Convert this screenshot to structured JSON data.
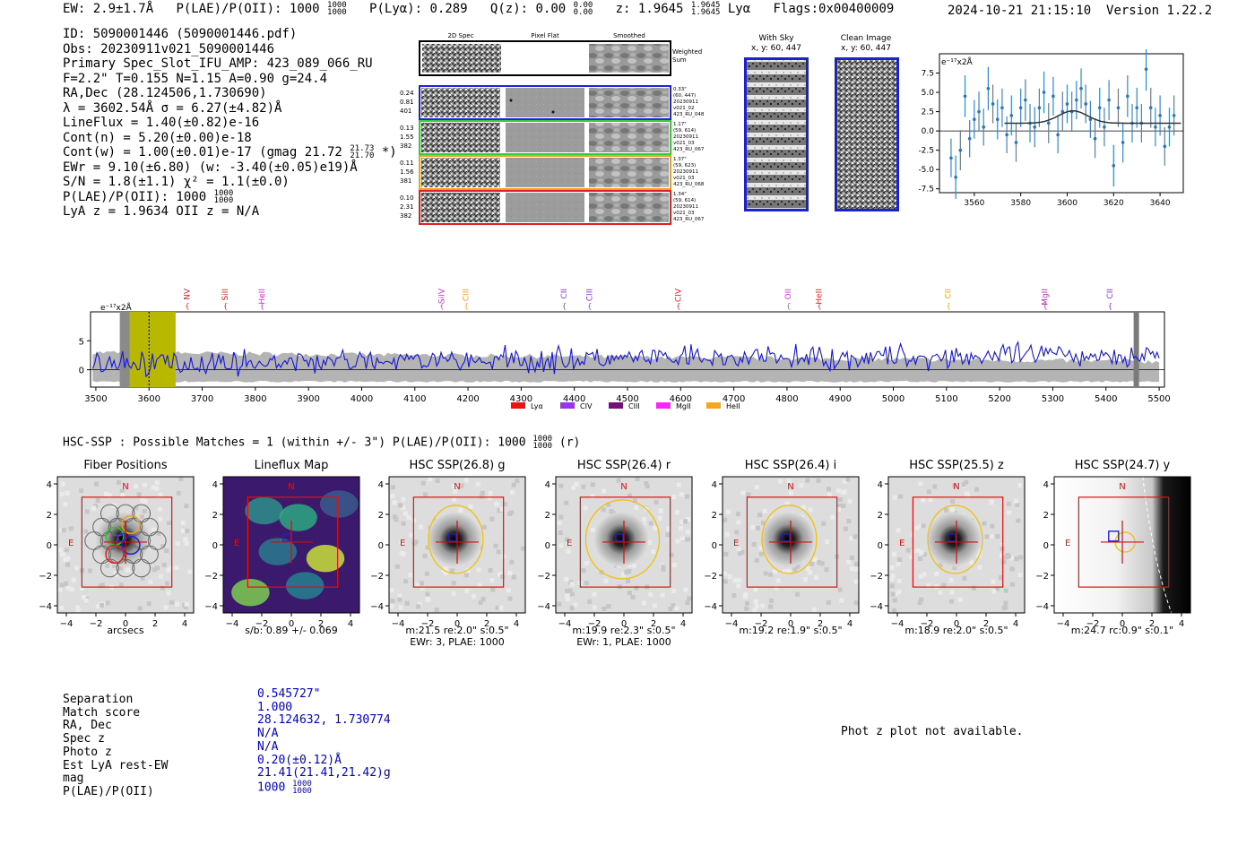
{
  "header": {
    "ew": "EW: 2.9±1.7Å",
    "plae_label": "P(LAE)/P(OII): 1000",
    "plae_hi": "1000",
    "plae_lo": "1000",
    "plya": "P(Lyα): 0.289",
    "qz": "Q(z): 0.00",
    "qz_hi": "0.00",
    "qz_lo": "0.00",
    "z": "z: 1.9645",
    "z_hi": "1.9645",
    "z_lo": "1.9645",
    "z_line": "Lyα",
    "flags": "Flags:0x00400009",
    "timestamp": "2024-10-21 21:15:10",
    "version": "Version 1.22.2"
  },
  "info": {
    "id": "ID: 5090001446 (5090001446.pdf)",
    "obs": "Obs: 20230911v021_5090001446",
    "primary": "Primary Spec_Slot_IFU_AMP: 423_089_066_RU",
    "params": "F=2.2\"  T=0.155  N=1.15  A=0.90  g=24.4",
    "radec": "RA,Dec (28.124506,1.730690)",
    "lambda": "λ = 3602.54Å  σ = 6.27(±4.82)Å",
    "lineflux": "LineFlux = 1.40(±0.82)e-16",
    "contn": "Cont(n) = 5.20(±0.00)e-18",
    "contw": "Cont(w) = 1.00(±0.01)e-17 (gmag 21.72",
    "contw_hi": "21.73",
    "contw_lo": "21.70",
    "contw_end": "*)",
    "ewr": "EWr = 9.10(±6.80) (w: -3.40(±0.05)e19)Å",
    "sn": "S/N = 1.8(±1.1)  χ² = 1.1(±0.0)",
    "plae": "P(LAE)/P(OII): 1000",
    "plae_hi": "1000",
    "plae_lo": "1000",
    "lyaz": "LyA z = 1.9634  OII z = N/A"
  },
  "cutouts": {
    "col_labels": [
      "2D Spec",
      "Pixel Flat",
      "Smoothed"
    ],
    "weighted_label": "Weighted\nSum",
    "rows": [
      {
        "left": [
          "0.24",
          "0.81",
          "401"
        ],
        "right": [
          "0.33\"",
          "(60, 447)",
          "20230911",
          "v021_02",
          "423_RU_048"
        ],
        "color": "#2020e0"
      },
      {
        "left": [
          "0.13",
          "1.55",
          "382"
        ],
        "right": [
          "1.17\"",
          "(59, 614)",
          "20230911",
          "v021_03",
          "423_RU_067"
        ],
        "color": "#30d030"
      },
      {
        "left": [
          "0.11",
          "1.56",
          "381"
        ],
        "right": [
          "1.37\"",
          "(59, 623)",
          "20230911",
          "v021_03",
          "423_RU_068"
        ],
        "color": "#f0a020"
      },
      {
        "left": [
          "0.10",
          "2.31",
          "382"
        ],
        "right": [
          "1.34\"",
          "(59, 614)",
          "20230911",
          "v021_03",
          "423_RU_067"
        ],
        "color": "#e02020"
      }
    ],
    "with_sky_title": "With Sky",
    "with_sky_xy": "x, y: 60, 447",
    "clean_title": "Clean Image",
    "clean_xy": "x, y: 60, 447"
  },
  "line_fit_chart": {
    "unit_label": "e⁻¹⁷x2Å"
  },
  "full_spectrum": {
    "unit_label": "e⁻¹⁷x2Å",
    "line_labels": [
      {
        "name": "NV",
        "x": 3671,
        "color": "#e02020"
      },
      {
        "name": "SiII",
        "x": 3743,
        "color": "#e02020"
      },
      {
        "name": "HeII",
        "x": 3812,
        "color": "#cc33cc"
      },
      {
        "name": "SiIV",
        "x": 4150,
        "color": "#cc33cc"
      },
      {
        "name": "CIII",
        "x": 4196,
        "color": "#f0a020"
      },
      {
        "name": "CII",
        "x": 4380,
        "color": "#8833cc"
      },
      {
        "name": "CIII",
        "x": 4428,
        "color": "#8833cc"
      },
      {
        "name": "CIV",
        "x": 4595,
        "color": "#e02020"
      },
      {
        "name": "OII",
        "x": 4802,
        "color": "#ee22ee"
      },
      {
        "name": "HeII",
        "x": 4860,
        "color": "#e02020"
      },
      {
        "name": "CII",
        "x": 5103,
        "color": "#f0a020"
      },
      {
        "name": "MgII",
        "x": 5285,
        "color": "#aa33aa"
      },
      {
        "name": "CII",
        "x": 5407,
        "color": "#8833cc"
      }
    ],
    "legend": [
      {
        "name": "Lyα",
        "color": "#ee1111"
      },
      {
        "name": "CIV",
        "color": "#9933ee"
      },
      {
        "name": "CIII",
        "color": "#771177"
      },
      {
        "name": "MgII",
        "color": "#ff22ff"
      },
      {
        "name": "HeII",
        "color": "#f5a520"
      }
    ]
  },
  "hsc": {
    "header": "HSC-SSP : Possible Matches = 1 (within +/- 3\")  P(LAE)/P(OII): 1000",
    "header_hi": "1000",
    "header_lo": "1000",
    "header_end": "(r)",
    "panels": [
      {
        "title": "Fiber Positions",
        "cap1": "arcsecs",
        "cap2": ""
      },
      {
        "title": "Lineflux Map",
        "cap1": "s/b: 0.89 +/- 0.069",
        "cap2": ""
      },
      {
        "title": "HSC SSP(26.8) g",
        "cap1": "m:21.5  re:2.0\"  s:0.5\"",
        "cap2": "EWr: 3, PLAE: 1000"
      },
      {
        "title": "HSC SSP(26.4) r",
        "cap1": "m:19.9  re:2.3\"  s:0.5\"",
        "cap2": "EWr: 1, PLAE: 1000"
      },
      {
        "title": "HSC SSP(26.4) i",
        "cap1": "m:19.2  re:1.9\"  s:0.5\"",
        "cap2": ""
      },
      {
        "title": "HSC SSP(25.5) z",
        "cap1": "m:18.9  re:2.0\"  s:0.5\"",
        "cap2": ""
      },
      {
        "title": "HSC SSP(24.7) y",
        "cap1": "m:24.7  rc:0.9\"  s:0.1\"",
        "cap2": ""
      }
    ],
    "north": "N",
    "east": "E",
    "ticks": [
      "4",
      "2",
      "0",
      "−2",
      "−4"
    ],
    "xticks": [
      "−4",
      "−2",
      "0",
      "2",
      "4"
    ]
  },
  "match": {
    "labels": [
      "Separation",
      "Match score",
      "RA, Dec",
      "Spec z",
      "Photo z",
      "Est LyA rest-EW",
      "mag",
      "P(LAE)/P(OII)"
    ],
    "values": [
      "0.545727\"",
      "1.000",
      "28.124632, 1.730774",
      "N/A",
      "N/A",
      "0.20(±0.12)Å",
      "21.41(21.41,21.42)g",
      "1000"
    ],
    "plae_hi": "1000",
    "plae_lo": "1000"
  },
  "photz_note": "Phot z plot not available.",
  "chart_data": [
    {
      "type": "scatter",
      "title": "",
      "xlabel": "",
      "ylabel": "e⁻¹⁷x2Å",
      "xlim": [
        3545,
        3650
      ],
      "ylim": [
        -8,
        10
      ],
      "xticks": [
        3560,
        3580,
        3600,
        3620,
        3640
      ],
      "yticks": [
        -7.5,
        -5.0,
        -2.5,
        0.0,
        2.5,
        5.0,
        7.5
      ],
      "series": [
        {
          "x": [
            3550,
            3552,
            3554,
            3556,
            3558,
            3560,
            3562,
            3564,
            3566,
            3568,
            3570,
            3572,
            3574,
            3576,
            3578,
            3580,
            3582,
            3584,
            3586,
            3588,
            3590,
            3592,
            3594,
            3596,
            3598,
            3600,
            3602,
            3604,
            3606,
            3608,
            3610,
            3612,
            3614,
            3616,
            3618,
            3620,
            3622,
            3624,
            3626,
            3628,
            3630,
            3632,
            3634,
            3636,
            3638,
            3640,
            3642,
            3644,
            3646
          ],
          "y": [
            -3.5,
            -6,
            -2.5,
            4.5,
            -1,
            1.5,
            2.5,
            0.5,
            5.5,
            3.5,
            1.5,
            3.0,
            -0.5,
            2.0,
            -1.5,
            3.0,
            4.0,
            1.0,
            0.5,
            3.0,
            5.0,
            1.0,
            4.5,
            -0.5,
            2.5,
            3.5,
            2.5,
            4.0,
            5.5,
            3.5,
            1.5,
            -1.0,
            3.0,
            0.5,
            4.0,
            -4.5,
            3.0,
            -1.5,
            4.5,
            1.0,
            3.0,
            1.0,
            8.0,
            3.0,
            0.5,
            2.0,
            -2.0,
            0.5,
            2.0
          ],
          "err": [
            2.5,
            2.8,
            2.6,
            2.7,
            2.4,
            2.5,
            2.6,
            2.4,
            2.8,
            2.5,
            2.6,
            2.5,
            2.4,
            2.6,
            2.5,
            2.5,
            2.7,
            2.5,
            2.6,
            2.5,
            2.7,
            2.6,
            2.5,
            2.4,
            2.6,
            2.5,
            2.6,
            2.5,
            2.6,
            2.5,
            2.4,
            2.5,
            2.6,
            2.5,
            2.6,
            2.7,
            2.5,
            2.6,
            2.7,
            2.5,
            2.6,
            2.5,
            2.8,
            2.6,
            2.5,
            2.6,
            2.5,
            2.5,
            2.6
          ]
        },
        {
          "type": "line",
          "x": [
            3573,
            3649
          ],
          "fit": {
            "continuum": 1.0,
            "amplitude": 1.6,
            "center": 3602.5,
            "sigma": 6.27
          }
        }
      ]
    },
    {
      "type": "line",
      "title": "",
      "xlabel": "",
      "ylabel": "e⁻¹⁷x2Å",
      "xlim": [
        3490,
        5510
      ],
      "ylim": [
        -3,
        10
      ],
      "xticks": [
        3500,
        3600,
        3700,
        3800,
        3900,
        4000,
        4100,
        4200,
        4300,
        4400,
        4500,
        4600,
        4700,
        4800,
        4900,
        5000,
        5100,
        5200,
        5300,
        5400,
        5500
      ],
      "yticks": [
        0,
        5
      ],
      "series": [
        {
          "name": "flux",
          "x_start": 3494,
          "x_end": 5500,
          "npoints": 500,
          "mean_start": 1.0,
          "mean_end": 2.6,
          "scatter": 1.4
        }
      ],
      "highlight_range": [
        3555,
        3650
      ]
    }
  ]
}
